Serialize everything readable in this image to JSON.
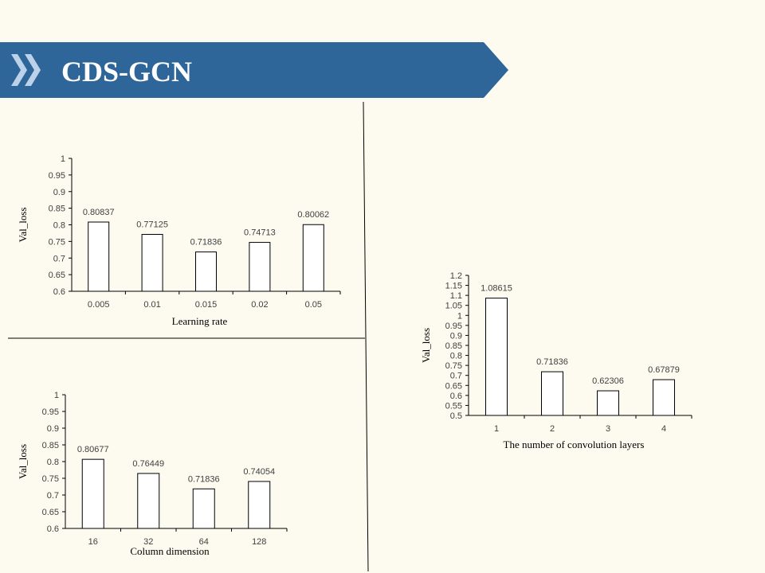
{
  "slide": {
    "title": "CDS-GCN",
    "colors": {
      "banner": "#2e6699",
      "chevron": "#bcd2ea",
      "background": "#fdfbf0",
      "bar_fill": "#ffffff",
      "bar_stroke": "#000000"
    }
  },
  "chart_data": [
    {
      "type": "bar",
      "categories": [
        "0.005",
        "0.01",
        "0.015",
        "0.02",
        "0.05"
      ],
      "values": [
        0.80837,
        0.77125,
        0.71836,
        0.74713,
        0.80062
      ],
      "data_labels": [
        "0.80837",
        "0.77125",
        "0.71836",
        "0.74713",
        "0.80062"
      ],
      "yticks": [
        "0.6",
        "0.65",
        "0.7",
        "0.75",
        "0.8",
        "0.85",
        "0.9",
        "0.95",
        "1"
      ],
      "ylim": [
        0.6,
        1
      ],
      "xlabel": "Learning rate",
      "ylabel": "Val_loss",
      "grid": false
    },
    {
      "type": "bar",
      "categories": [
        "16",
        "32",
        "64",
        "128"
      ],
      "values": [
        0.80677,
        0.76449,
        0.71836,
        0.74054
      ],
      "data_labels": [
        "0.80677",
        "0.76449",
        "0.71836",
        "0.74054"
      ],
      "yticks": [
        "0.6",
        "0.65",
        "0.7",
        "0.75",
        "0.8",
        "0.85",
        "0.9",
        "0.95",
        "1"
      ],
      "ylim": [
        0.6,
        1
      ],
      "xlabel": "Column dimension",
      "ylabel": "Val_loss",
      "grid": false
    },
    {
      "type": "bar",
      "categories": [
        "1",
        "2",
        "3",
        "4"
      ],
      "values": [
        1.08615,
        0.71836,
        0.62306,
        0.67879
      ],
      "data_labels": [
        "1.08615",
        "0.71836",
        "0.62306",
        "0.67879"
      ],
      "yticks": [
        "0.5",
        "0.55",
        "0.6",
        "0.65",
        "0.7",
        "0.75",
        "0.8",
        "0.85",
        "0.9",
        "0.95",
        "1",
        "1.05",
        "1.1",
        "1.15",
        "1.2"
      ],
      "ylim": [
        0.5,
        1.2
      ],
      "xlabel": "The number of convolution layers",
      "ylabel": "Val_loss",
      "grid": false
    }
  ]
}
